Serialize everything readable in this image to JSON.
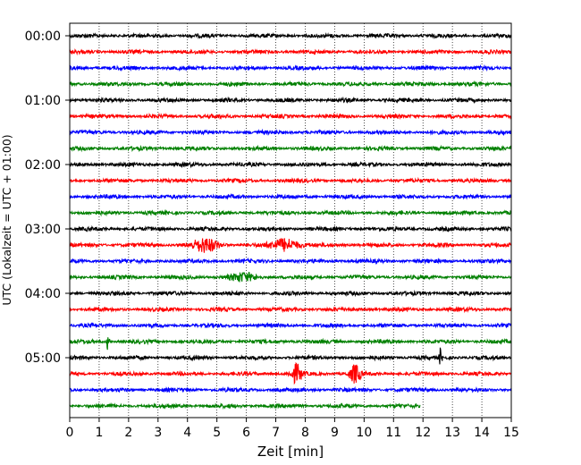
{
  "chart_data": {
    "type": "line",
    "title": "",
    "xlabel": "Zeit  [min]",
    "ylabel": "UTC (Lokalzeit = UTC + 01:00)",
    "xlim": [
      0,
      15
    ],
    "x_ticks": [
      0,
      1,
      2,
      3,
      4,
      5,
      6,
      7,
      8,
      9,
      10,
      11,
      12,
      13,
      14,
      15
    ],
    "x_tick_labels": [
      "0",
      "1",
      "2",
      "3",
      "4",
      "5",
      "6",
      "7",
      "8",
      "9",
      "10",
      "11",
      "12",
      "13",
      "14",
      "15"
    ],
    "y_tick_labels": [
      "00:00",
      "01:00",
      "02:00",
      "03:00",
      "04:00",
      "05:00"
    ],
    "grid": "vertical dotted",
    "traces_per_hour": 4,
    "minutes_per_trace": 15,
    "colors": [
      "#000000",
      "#ff0000",
      "#0000ff",
      "#008000"
    ],
    "trace_count": 24,
    "last_trace_end_min": 11.9,
    "events": [
      {
        "trace": 13,
        "center_min": 4.6,
        "amplitude": "moderate"
      },
      {
        "trace": 13,
        "center_min": 7.3,
        "amplitude": "moderate"
      },
      {
        "trace": 15,
        "center_min": 5.9,
        "amplitude": "small"
      },
      {
        "trace": 19,
        "center_min": 1.3,
        "amplitude": "spike"
      },
      {
        "trace": 20,
        "center_min": 12.6,
        "amplitude": "spike"
      },
      {
        "trace": 21,
        "center_min": 7.7,
        "amplitude": "large"
      },
      {
        "trace": 21,
        "center_min": 9.7,
        "amplitude": "large"
      }
    ]
  }
}
